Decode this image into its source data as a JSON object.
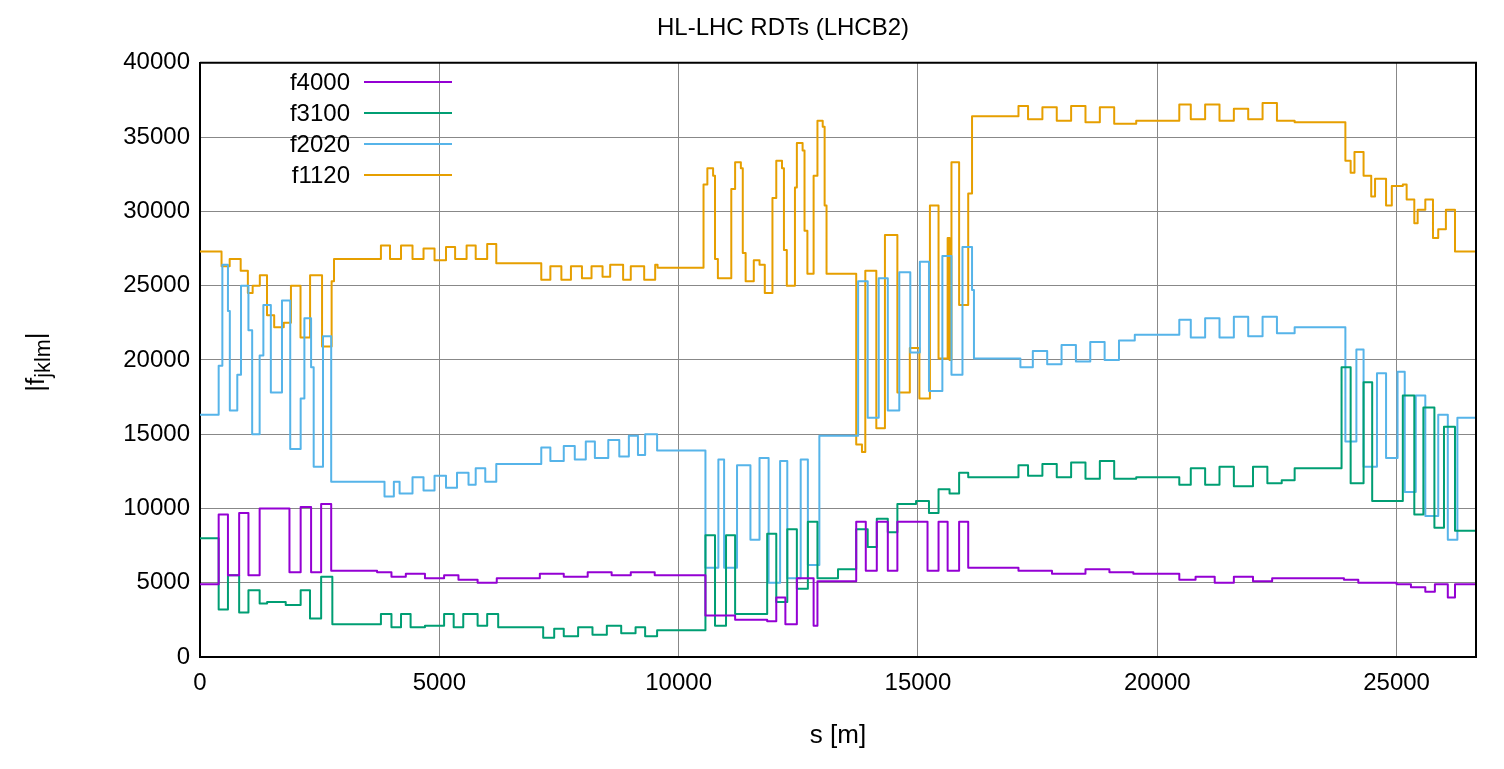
{
  "chart_data": {
    "type": "step",
    "title": "HL-LHC RDTs (LHCB2)",
    "xlabel": "s [m]",
    "ylabel": "|f$_{jklm}$|",
    "xlim": [
      0,
      26659
    ],
    "xticks": [
      0,
      5000,
      10000,
      15000,
      20000,
      25000
    ],
    "ylim": [
      0,
      40000
    ],
    "yticks": [
      0,
      5000,
      10000,
      15000,
      20000,
      25000,
      30000,
      35000,
      40000
    ],
    "grid": true,
    "legend": "top left",
    "marker": "none",
    "series": [
      {
        "name": "f4000",
        "color": "#9400d3",
        "x": [
          0,
          390,
          584,
          818,
          1012,
          1246,
          1869,
          2103,
          2321,
          2531,
          2741,
          3700,
          4000,
          4300,
          4700,
          5100,
          5400,
          5800,
          6200,
          7100,
          7600,
          8100,
          8600,
          9000,
          9500,
          10560,
          11180,
          11850,
          12040,
          12230,
          12470,
          12820,
          12900,
          13710,
          13910,
          14140,
          14370,
          14570,
          15200,
          15430,
          15620,
          15860,
          16050,
          17100,
          17800,
          18500,
          19000,
          19500,
          20460,
          20800,
          21200,
          21600,
          22000,
          22400,
          22870,
          23900,
          24200,
          25000,
          25300,
          25600,
          25800,
          26070,
          26220,
          26659
        ],
        "values": [
          4900,
          9600,
          5500,
          9700,
          5500,
          10000,
          5700,
          10100,
          5700,
          10300,
          5800,
          5700,
          5400,
          5600,
          5300,
          5500,
          5200,
          5000,
          5300,
          5600,
          5400,
          5700,
          5500,
          5700,
          5500,
          2800,
          2500,
          2400,
          4000,
          2200,
          5300,
          2100,
          5100,
          9100,
          5800,
          9100,
          5800,
          9100,
          5800,
          9100,
          5800,
          9100,
          6000,
          5800,
          5600,
          5900,
          5700,
          5600,
          5200,
          5400,
          5000,
          5400,
          5100,
          5300,
          5300,
          5200,
          5000,
          4900,
          4700,
          4400,
          4900,
          4000,
          4900,
          4900
        ]
      },
      {
        "name": "f3100",
        "color": "#009e73",
        "x": [
          0,
          390,
          584,
          818,
          1012,
          1246,
          1402,
          1791,
          2103,
          2298,
          2531,
          2765,
          3780,
          4000,
          4200,
          4400,
          4700,
          5100,
          5300,
          5500,
          5800,
          6000,
          6230,
          7170,
          7400,
          7600,
          7900,
          8200,
          8500,
          8800,
          9100,
          9300,
          9550,
          10560,
          10760,
          10990,
          11180,
          11850,
          12040,
          12270,
          12470,
          12700,
          12900,
          13330,
          13710,
          13950,
          14140,
          14370,
          14570,
          14960,
          15230,
          15430,
          15660,
          15860,
          16050,
          17100,
          17300,
          17600,
          17900,
          18200,
          18500,
          18800,
          19100,
          19560,
          20460,
          20700,
          21000,
          21300,
          21600,
          22000,
          22300,
          22600,
          22870,
          23850,
          24040,
          24310,
          24490,
          25130,
          25370,
          25560,
          25790,
          25990,
          26220,
          26659
        ],
        "values": [
          8000,
          3200,
          5500,
          3000,
          4500,
          3600,
          3700,
          3500,
          4500,
          2600,
          5400,
          2200,
          2900,
          2000,
          2900,
          2000,
          2100,
          2900,
          2000,
          2900,
          2100,
          2900,
          2000,
          1300,
          1900,
          1400,
          2000,
          1500,
          2100,
          1600,
          2000,
          1400,
          1800,
          8200,
          2100,
          8200,
          2900,
          8300,
          3700,
          8600,
          4600,
          9100,
          5300,
          5900,
          8600,
          7400,
          9300,
          8400,
          10300,
          10500,
          9700,
          11300,
          11000,
          12400,
          12100,
          12900,
          12200,
          13000,
          12100,
          13100,
          12000,
          13200,
          12000,
          12100,
          11600,
          12700,
          11600,
          12800,
          11500,
          12800,
          11700,
          11900,
          12700,
          19500,
          11700,
          18500,
          10500,
          17600,
          9600,
          16800,
          8700,
          15500,
          8500,
          8500
        ]
      },
      {
        "name": "f2020",
        "color": "#56b4e9",
        "x": [
          0,
          390,
          467,
          584,
          623,
          779,
          857,
          1012,
          1090,
          1246,
          1324,
          1480,
          1713,
          1885,
          2103,
          2181,
          2321,
          2375,
          2570,
          2741,
          3855,
          4050,
          4170,
          4440,
          4670,
          4900,
          5140,
          5370,
          5610,
          5760,
          5960,
          6190,
          7130,
          7320,
          7600,
          7830,
          8060,
          8250,
          8530,
          8760,
          8960,
          9150,
          9300,
          9550,
          10560,
          10830,
          10950,
          11220,
          11500,
          11690,
          11880,
          12120,
          12270,
          12550,
          12700,
          12940,
          13750,
          13950,
          14180,
          14370,
          14610,
          14840,
          15040,
          15230,
          15510,
          15700,
          15930,
          16130,
          16170,
          17140,
          17400,
          17700,
          18000,
          18300,
          18600,
          18900,
          19200,
          19530,
          20460,
          20700,
          21000,
          21300,
          21600,
          21900,
          22200,
          22500,
          22870,
          23930,
          24160,
          24310,
          24590,
          24780,
          25020,
          25170,
          25400,
          25600,
          25870,
          26070,
          26270,
          26659
        ],
        "values": [
          16300,
          19600,
          26400,
          23300,
          16600,
          19000,
          25000,
          22000,
          15000,
          20300,
          23700,
          17800,
          24000,
          14000,
          17400,
          22800,
          19500,
          12800,
          21600,
          11800,
          10800,
          11800,
          11000,
          12100,
          11200,
          12200,
          11400,
          12400,
          11600,
          12700,
          11800,
          13000,
          14100,
          13200,
          14200,
          13300,
          14500,
          13400,
          14600,
          13500,
          14900,
          13600,
          15000,
          13900,
          6000,
          13300,
          6000,
          12900,
          7900,
          13400,
          5000,
          13200,
          5300,
          13300,
          6200,
          14900,
          25300,
          16100,
          25500,
          16600,
          25900,
          20500,
          26600,
          17900,
          27000,
          19000,
          27600,
          24700,
          20100,
          19500,
          20600,
          19700,
          21000,
          19900,
          21200,
          20000,
          21300,
          21700,
          22700,
          21500,
          22800,
          21500,
          22900,
          21600,
          22900,
          21800,
          22200,
          14500,
          20700,
          12800,
          19100,
          13400,
          19200,
          11100,
          17600,
          9500,
          16300,
          7900,
          16100,
          16100
        ]
      },
      {
        "name": "f1120",
        "color": "#e69f00",
        "x": [
          0,
          450,
          620,
          850,
          1000,
          1100,
          1250,
          1400,
          1550,
          1750,
          1900,
          2100,
          2300,
          2550,
          2750,
          2800,
          3780,
          3970,
          4200,
          4440,
          4670,
          4900,
          5140,
          5330,
          5570,
          5760,
          6000,
          6190,
          7130,
          7320,
          7550,
          7750,
          7980,
          8180,
          8410,
          8570,
          8840,
          9000,
          9280,
          9510,
          9560,
          10520,
          10600,
          10720,
          10760,
          10820,
          11100,
          11180,
          11300,
          11340,
          11400,
          11570,
          11690,
          11800,
          11960,
          12040,
          12160,
          12200,
          12260,
          12430,
          12470,
          12590,
          12630,
          12690,
          12820,
          12900,
          13010,
          13050,
          13090,
          13710,
          13830,
          13900,
          14130,
          14310,
          14570,
          14830,
          15030,
          15250,
          15430,
          15620,
          15660,
          15700,
          15860,
          16050,
          16130,
          17100,
          17300,
          17600,
          17900,
          18200,
          18500,
          18800,
          19100,
          19560,
          20460,
          20700,
          21000,
          21300,
          21600,
          21900,
          22200,
          22500,
          22870,
          23930,
          24040,
          24120,
          24310,
          24470,
          24550,
          24780,
          24900,
          25130,
          25210,
          25370,
          25440,
          25600,
          25760,
          25870,
          26030,
          26220,
          26659
        ],
        "values": [
          27300,
          26300,
          26800,
          26000,
          24500,
          25000,
          25700,
          23000,
          22200,
          22500,
          25000,
          21500,
          25700,
          20900,
          25300,
          26800,
          27700,
          26800,
          27700,
          26800,
          27500,
          26700,
          27600,
          26800,
          27700,
          26800,
          27800,
          26500,
          25400,
          26300,
          25400,
          26300,
          25500,
          26300,
          25600,
          26400,
          25400,
          26300,
          25400,
          26400,
          26200,
          31800,
          32900,
          32400,
          26800,
          25500,
          31500,
          33300,
          32900,
          27200,
          25300,
          26700,
          26400,
          24500,
          30900,
          33400,
          32900,
          27400,
          25000,
          31600,
          34600,
          34100,
          28700,
          25800,
          32400,
          36100,
          35700,
          30400,
          25800,
          14300,
          13800,
          26000,
          15400,
          28400,
          17800,
          20800,
          17400,
          30400,
          20100,
          28200,
          20000,
          33300,
          23700,
          31200,
          36400,
          37100,
          36200,
          37000,
          36100,
          37100,
          36000,
          37000,
          35900,
          36100,
          37200,
          36200,
          37200,
          36100,
          36900,
          36200,
          37300,
          36100,
          36000,
          33400,
          32600,
          34000,
          32400,
          31000,
          32200,
          30400,
          31700,
          31800,
          30800,
          29200,
          30100,
          30800,
          28200,
          28800,
          30100,
          27300,
          27300
        ]
      }
    ]
  }
}
